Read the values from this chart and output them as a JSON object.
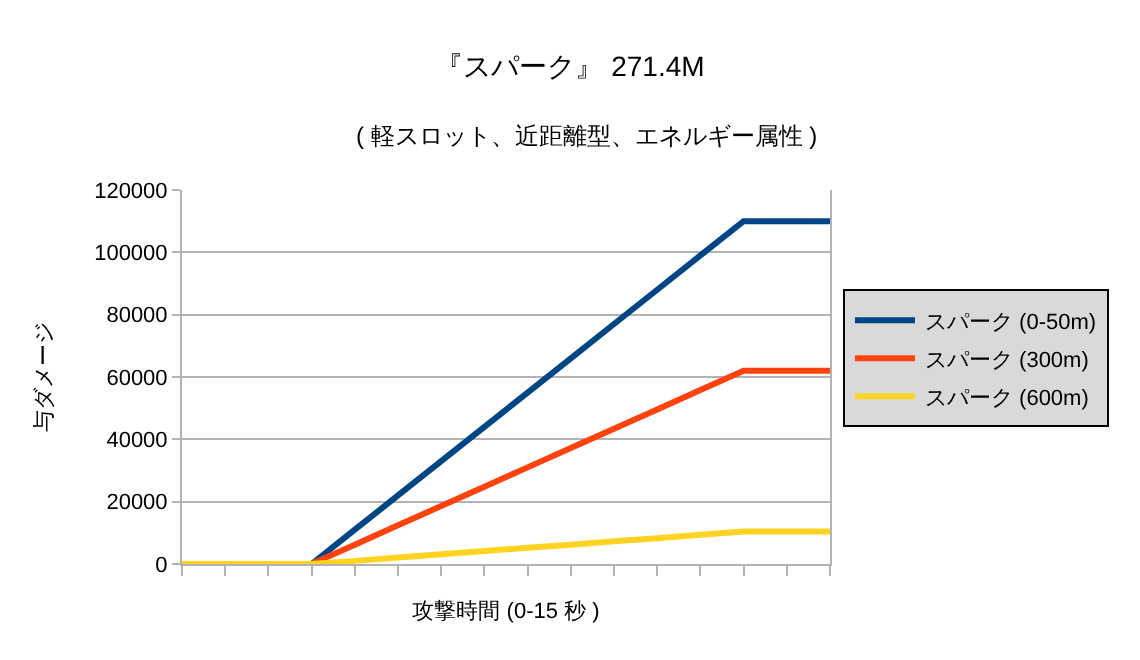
{
  "chart_data": {
    "type": "line",
    "title": "『スパーク』 271.4M",
    "subtitle": "( 軽スロット、近距離型、エネルギー属性 )",
    "xlabel": "攻撃時間 (0-15 秒 )",
    "ylabel": "与ダメージ",
    "categories": [
      null,
      null,
      null,
      null,
      null,
      null,
      null,
      null,
      null,
      null,
      null,
      null,
      null,
      null,
      null,
      null
    ],
    "series": [
      {
        "name": "スパーク (0-50m)",
        "color": "#004586",
        "values": [
          null,
          null,
          null,
          0,
          11000,
          22000,
          33000,
          44000,
          55000,
          66000,
          77000,
          88000,
          99000,
          110000,
          110000,
          110000
        ]
      },
      {
        "name": "スパーク (300m)",
        "color": "#ff420e",
        "values": [
          null,
          null,
          null,
          0,
          6200,
          12400,
          18600,
          24800,
          31000,
          37200,
          43400,
          49600,
          55800,
          62000,
          62000,
          62000
        ]
      },
      {
        "name": "スパーク (600m)",
        "color": "#ffd320",
        "values": [
          0,
          0,
          0,
          0,
          1000,
          2100,
          3100,
          4200,
          5200,
          6200,
          7300,
          8300,
          9400,
          10400,
          10400,
          10400
        ]
      }
    ],
    "ylim": [
      0,
      120000
    ],
    "yticks": [
      0,
      20000,
      40000,
      60000,
      80000,
      100000,
      120000
    ],
    "grid": "y",
    "legend": "right",
    "marker": "none",
    "line_style": "solid",
    "tick_labels": "y"
  }
}
